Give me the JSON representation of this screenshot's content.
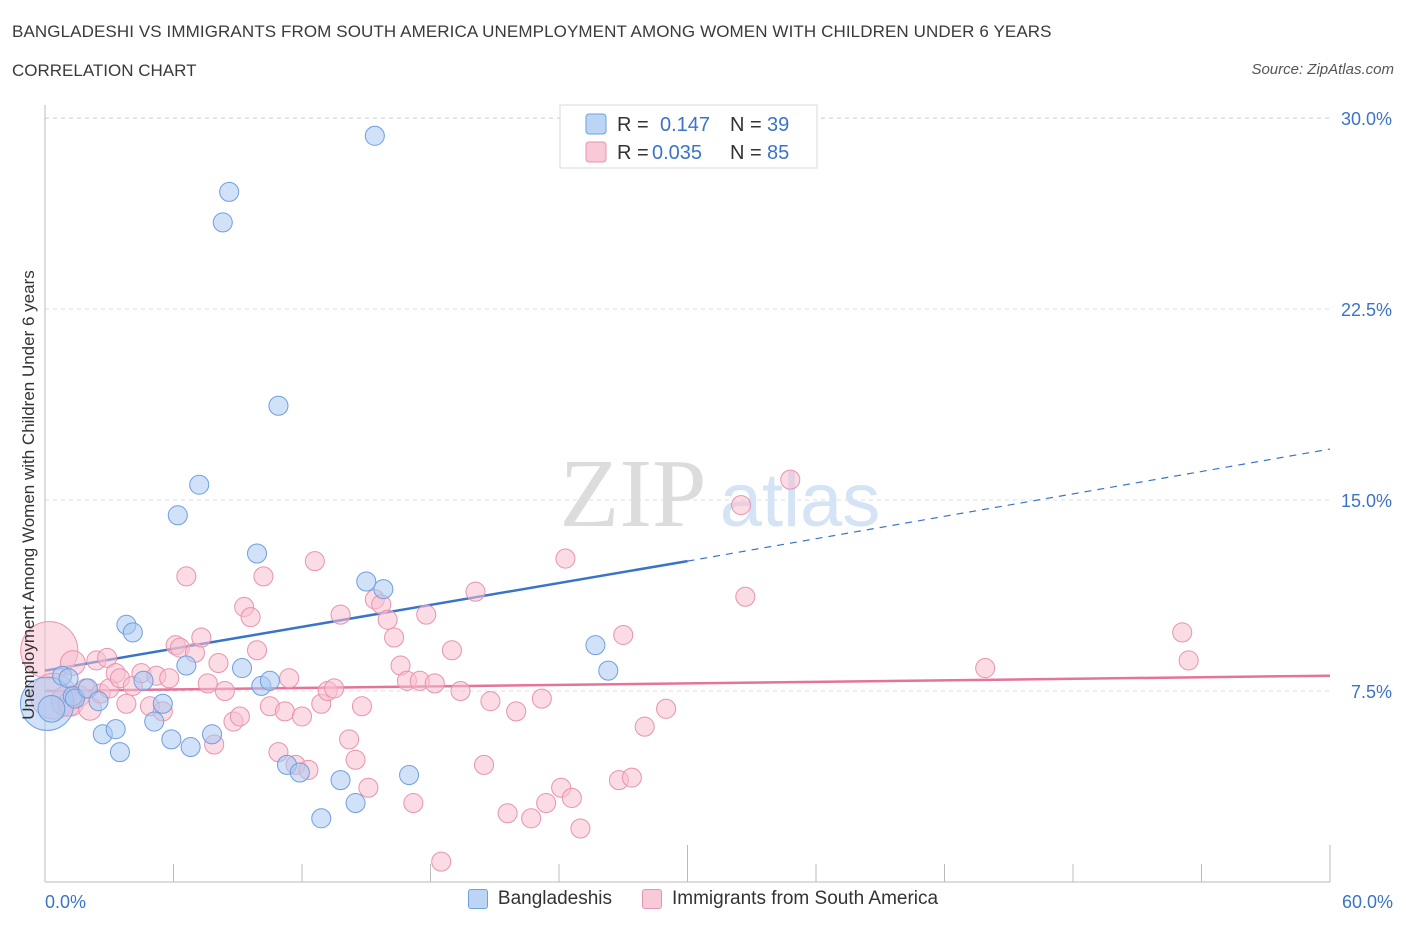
{
  "header": {
    "title": "BANGLADESHI VS IMMIGRANTS FROM SOUTH AMERICA UNEMPLOYMENT AMONG WOMEN WITH CHILDREN UNDER 6 YEARS",
    "subtitle": "CORRELATION CHART",
    "source": "Source: ZipAtlas.com"
  },
  "watermark": {
    "zip": "ZIP",
    "atlas": "atlas"
  },
  "legend_top": {
    "series1": {
      "r_label": "R =",
      "r_value": "0.147",
      "n_label": "N =",
      "n_value": "39"
    },
    "series2": {
      "r_label": "R =",
      "r_value": "0.035",
      "n_label": "N =",
      "n_value": "85"
    }
  },
  "chart_data": {
    "type": "scatter",
    "ylabel": "Unemployment Among Women with Children Under 6 years",
    "x_tick_labels": [
      "0.0%",
      "60.0%"
    ],
    "y_tick_labels": [
      "7.5%",
      "15.0%",
      "22.5%",
      "30.0%"
    ],
    "xlim": [
      0,
      60
    ],
    "ylim": [
      0,
      30
    ],
    "x_ticks": [
      0,
      6,
      12,
      18,
      24,
      30,
      36,
      42,
      48,
      54,
      60
    ],
    "y_ticks": [
      7.5,
      15,
      22.5,
      30
    ],
    "grid": true,
    "legend_placement": "top-center",
    "colors": {
      "bangladeshis": "#a9c8f2",
      "bangladeshis_edge": "#6f9fde",
      "bangladeshis_line": "#3a74c8",
      "south_america": "#f8bfd0",
      "south_america_edge": "#e893ae",
      "south_america_line": "#e5739a"
    },
    "series": [
      {
        "name": "Bangladeshis",
        "trend": {
          "x": [
            0,
            30,
            60
          ],
          "y": [
            8.3,
            12.6,
            17.0
          ],
          "solid_until": 30
        },
        "points": [
          [
            0.1,
            7.0,
            28
          ],
          [
            0.3,
            6.8,
            14
          ],
          [
            0.8,
            8.1,
            10
          ],
          [
            1.1,
            8.0,
            10
          ],
          [
            1.3,
            7.3,
            10
          ],
          [
            1.4,
            7.2,
            10
          ],
          [
            2.0,
            7.6,
            10
          ],
          [
            2.5,
            7.1,
            10
          ],
          [
            2.7,
            5.8,
            10
          ],
          [
            3.3,
            6.0,
            10
          ],
          [
            3.5,
            5.1,
            10
          ],
          [
            3.8,
            10.1,
            10
          ],
          [
            4.1,
            9.8,
            10
          ],
          [
            4.6,
            7.9,
            10
          ],
          [
            5.1,
            6.3,
            10
          ],
          [
            5.5,
            7.0,
            10
          ],
          [
            5.9,
            5.6,
            10
          ],
          [
            6.2,
            14.4,
            10
          ],
          [
            6.6,
            8.5,
            10
          ],
          [
            6.8,
            5.3,
            10
          ],
          [
            7.2,
            15.6,
            10
          ],
          [
            7.8,
            5.8,
            10
          ],
          [
            8.3,
            25.9,
            10
          ],
          [
            8.6,
            27.1,
            10
          ],
          [
            9.2,
            8.4,
            10
          ],
          [
            9.9,
            12.9,
            10
          ],
          [
            10.1,
            7.7,
            10
          ],
          [
            10.5,
            7.9,
            10
          ],
          [
            10.9,
            18.7,
            10
          ],
          [
            11.3,
            4.6,
            10
          ],
          [
            11.9,
            4.3,
            10
          ],
          [
            12.9,
            2.5,
            10
          ],
          [
            13.8,
            4.0,
            10
          ],
          [
            14.5,
            3.1,
            10
          ],
          [
            15.0,
            11.8,
            10
          ],
          [
            15.4,
            29.3,
            10
          ],
          [
            15.8,
            11.5,
            10
          ],
          [
            17.0,
            4.2,
            10
          ],
          [
            25.7,
            9.3,
            10
          ],
          [
            26.3,
            8.3,
            10
          ]
        ]
      },
      {
        "name": "Immigrants from South America",
        "trend": {
          "x": [
            0,
            60
          ],
          "y": [
            7.5,
            8.1
          ],
          "solid_until": 60
        },
        "points": [
          [
            0.2,
            9.1,
            30
          ],
          [
            0.4,
            7.3,
            24
          ],
          [
            1.0,
            7.1,
            16
          ],
          [
            1.2,
            7.0,
            13
          ],
          [
            1.3,
            8.6,
            13
          ],
          [
            1.6,
            7.3,
            11
          ],
          [
            1.9,
            7.6,
            10
          ],
          [
            2.1,
            6.8,
            12
          ],
          [
            2.4,
            8.7,
            10
          ],
          [
            2.6,
            7.4,
            10
          ],
          [
            2.9,
            8.8,
            10
          ],
          [
            3.0,
            7.6,
            10
          ],
          [
            3.3,
            8.2,
            10
          ],
          [
            3.5,
            8.0,
            10
          ],
          [
            3.8,
            7.0,
            10
          ],
          [
            4.1,
            7.7,
            10
          ],
          [
            4.5,
            8.2,
            10
          ],
          [
            4.9,
            6.9,
            10
          ],
          [
            5.2,
            8.1,
            10
          ],
          [
            5.5,
            6.7,
            10
          ],
          [
            5.8,
            8.0,
            10
          ],
          [
            6.1,
            9.3,
            10
          ],
          [
            6.3,
            9.2,
            10
          ],
          [
            6.6,
            12.0,
            10
          ],
          [
            7.0,
            9.0,
            10
          ],
          [
            7.3,
            9.6,
            10
          ],
          [
            7.6,
            7.8,
            10
          ],
          [
            7.9,
            5.4,
            10
          ],
          [
            8.1,
            8.6,
            10
          ],
          [
            8.4,
            7.5,
            10
          ],
          [
            8.8,
            6.3,
            10
          ],
          [
            9.1,
            6.5,
            10
          ],
          [
            9.3,
            10.8,
            10
          ],
          [
            9.6,
            10.4,
            10
          ],
          [
            9.9,
            9.1,
            10
          ],
          [
            10.2,
            12.0,
            10
          ],
          [
            10.5,
            6.9,
            10
          ],
          [
            10.9,
            5.1,
            10
          ],
          [
            11.2,
            6.7,
            10
          ],
          [
            11.4,
            8.0,
            10
          ],
          [
            11.7,
            4.6,
            10
          ],
          [
            12.0,
            6.5,
            10
          ],
          [
            12.3,
            4.4,
            10
          ],
          [
            12.6,
            12.6,
            10
          ],
          [
            12.9,
            7.0,
            10
          ],
          [
            13.2,
            7.5,
            10
          ],
          [
            13.5,
            7.6,
            10
          ],
          [
            13.8,
            10.5,
            10
          ],
          [
            14.2,
            5.6,
            10
          ],
          [
            14.5,
            4.8,
            10
          ],
          [
            14.8,
            6.9,
            10
          ],
          [
            15.1,
            3.7,
            10
          ],
          [
            15.4,
            11.1,
            10
          ],
          [
            15.7,
            10.9,
            10
          ],
          [
            16.0,
            10.3,
            10
          ],
          [
            16.3,
            9.6,
            10
          ],
          [
            16.6,
            8.5,
            10
          ],
          [
            16.9,
            7.9,
            10
          ],
          [
            17.2,
            3.1,
            10
          ],
          [
            17.5,
            7.9,
            10
          ],
          [
            17.8,
            10.5,
            10
          ],
          [
            18.2,
            7.8,
            10
          ],
          [
            18.5,
            0.8,
            10
          ],
          [
            19.0,
            9.1,
            10
          ],
          [
            19.4,
            7.5,
            10
          ],
          [
            20.1,
            11.4,
            10
          ],
          [
            20.5,
            4.6,
            10
          ],
          [
            20.8,
            7.1,
            10
          ],
          [
            21.6,
            2.7,
            10
          ],
          [
            22.0,
            6.7,
            10
          ],
          [
            22.7,
            2.5,
            10
          ],
          [
            23.2,
            7.2,
            10
          ],
          [
            23.4,
            3.1,
            10
          ],
          [
            24.1,
            3.7,
            10
          ],
          [
            24.3,
            12.7,
            10
          ],
          [
            24.6,
            3.3,
            10
          ],
          [
            25.0,
            2.1,
            10
          ],
          [
            26.8,
            4.0,
            10
          ],
          [
            27.0,
            9.7,
            10
          ],
          [
            27.4,
            4.1,
            10
          ],
          [
            28.0,
            6.1,
            10
          ],
          [
            29.0,
            6.8,
            10
          ],
          [
            32.5,
            14.8,
            10
          ],
          [
            32.7,
            11.2,
            10
          ],
          [
            34.8,
            15.8,
            10
          ],
          [
            43.9,
            8.4,
            10
          ],
          [
            53.1,
            9.8,
            10
          ],
          [
            53.4,
            8.7,
            10
          ]
        ]
      }
    ]
  },
  "bottom_legend": {
    "item1": "Bangladeshis",
    "item2": "Immigrants from South America"
  }
}
